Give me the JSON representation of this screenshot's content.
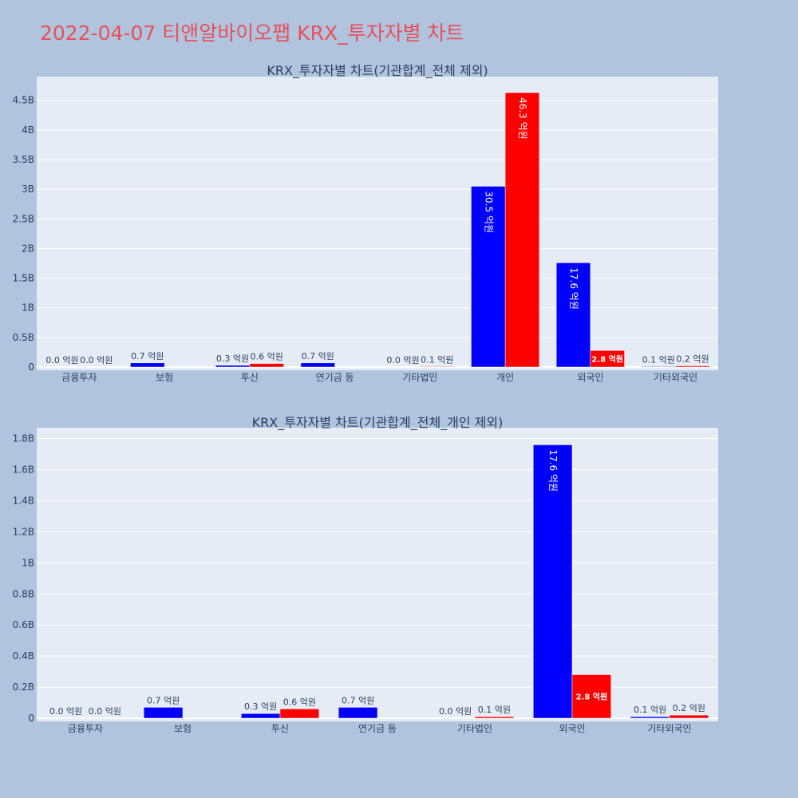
{
  "page": {
    "title": "2022-04-07 티앤알바이오팹 KRX_투자자별 차트"
  },
  "colors": {
    "background": "#b0c4de",
    "plot_bg": "#e5ecf6",
    "series_buy": "#0000ff",
    "series_sell": "#ff0000",
    "title_color": "#e8505b"
  },
  "chart_data": [
    {
      "type": "bar",
      "title": "KRX_투자자별 차트(기관합계_전체 제외)",
      "categories": [
        "금융투자",
        "보험",
        "투신",
        "연기금 등",
        "기타법인",
        "개인",
        "외국인",
        "기타외국인"
      ],
      "series": [
        {
          "values": [
            0,
            70000000,
            30000000,
            70000000,
            0,
            3050000000,
            1760000000,
            10000000
          ],
          "labels": [
            "0.0 억원",
            "0.7 억원",
            "0.3 억원",
            "0.7 억원",
            "0.0 억원",
            "30.5 억원",
            "17.6 억원",
            "0.1 억원"
          ]
        },
        {
          "values": [
            0,
            0,
            60000000,
            0,
            10000000,
            4630000000,
            280000000,
            20000000
          ],
          "labels": [
            "0.0 억원",
            "",
            "0.6 억원",
            "",
            "0.1 억원",
            "46.3 억원",
            "2.8 억원",
            "0.2 억원"
          ]
        }
      ],
      "ylim": [
        0,
        4900000000
      ],
      "yticks": [
        0,
        500000000,
        1000000000,
        1500000000,
        2000000000,
        2500000000,
        3000000000,
        3500000000,
        4000000000,
        4500000000
      ],
      "ytick_labels": [
        "0",
        "0.5B",
        "1B",
        "1.5B",
        "2B",
        "2.5B",
        "3B",
        "3.5B",
        "4B",
        "4.5B"
      ],
      "grid": true,
      "legend": "none"
    },
    {
      "type": "bar",
      "title": "KRX_투자자별 차트(기관합계_전체_개인 제외)",
      "categories": [
        "금융투자",
        "보험",
        "투신",
        "연기금 등",
        "기타법인",
        "외국인",
        "기타외국인"
      ],
      "series": [
        {
          "values": [
            0,
            70000000,
            30000000,
            70000000,
            0,
            1760000000,
            10000000
          ],
          "labels": [
            "0.0 억원",
            "0.7 억원",
            "0.3 억원",
            "0.7 억원",
            "0.0 억원",
            "17.6 억원",
            "0.1 억원"
          ]
        },
        {
          "values": [
            0,
            0,
            60000000,
            0,
            10000000,
            280000000,
            20000000
          ],
          "labels": [
            "0.0 억원",
            "",
            "0.6 억원",
            "",
            "0.1 억원",
            "2.8 억원",
            "0.2 억원"
          ]
        }
      ],
      "ylim": [
        0,
        1870000000
      ],
      "yticks": [
        0,
        200000000,
        400000000,
        600000000,
        800000000,
        1000000000,
        1200000000,
        1400000000,
        1600000000,
        1800000000
      ],
      "ytick_labels": [
        "0",
        "0.2B",
        "0.4B",
        "0.6B",
        "0.8B",
        "1B",
        "1.2B",
        "1.4B",
        "1.6B",
        "1.8B"
      ],
      "grid": true,
      "legend": "none"
    }
  ]
}
